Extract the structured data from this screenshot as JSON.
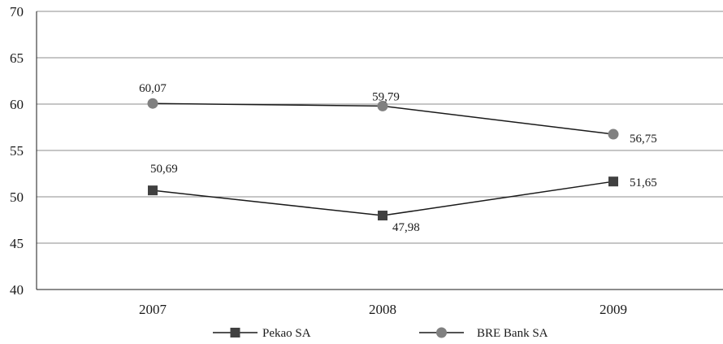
{
  "chart_data": {
    "type": "line",
    "categories": [
      "2007",
      "2008",
      "2009"
    ],
    "ylim": [
      40,
      70
    ],
    "yticks": [
      40,
      45,
      50,
      55,
      60,
      65,
      70
    ],
    "grid": true,
    "legend_position": "bottom",
    "series": [
      {
        "name": "Pekao SA",
        "values": [
          50.69,
          47.98,
          51.65
        ],
        "labels": [
          "50,69",
          "47,98",
          "51,65"
        ],
        "marker": "square",
        "color": "#404040"
      },
      {
        "name": "BRE Bank SA",
        "values": [
          60.07,
          59.79,
          56.75
        ],
        "labels": [
          "60,07",
          "59,79",
          "56,75"
        ],
        "marker": "circle",
        "color": "#808080"
      }
    ]
  }
}
